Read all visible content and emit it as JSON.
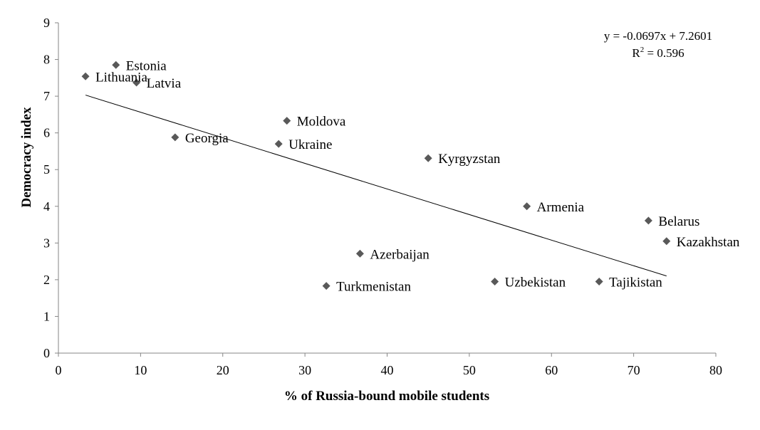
{
  "chart_data": {
    "type": "scatter",
    "xlabel": "% of Russia-bound mobile students",
    "ylabel": "Democracy index",
    "xlim": [
      0,
      80
    ],
    "ylim": [
      0,
      9
    ],
    "x_ticks": [
      0,
      10,
      20,
      30,
      40,
      50,
      60,
      70,
      80
    ],
    "y_ticks": [
      0,
      1,
      2,
      3,
      4,
      5,
      6,
      7,
      8,
      9
    ],
    "grid": false,
    "marker": "diamond",
    "marker_color": "#595959",
    "points": [
      {
        "label": "Lithuania",
        "x": 3.3,
        "y": 7.54
      },
      {
        "label": "Estonia",
        "x": 7.0,
        "y": 7.85
      },
      {
        "label": "Latvia",
        "x": 9.5,
        "y": 7.37
      },
      {
        "label": "Georgia",
        "x": 14.2,
        "y": 5.88
      },
      {
        "label": "Moldova",
        "x": 27.8,
        "y": 6.33
      },
      {
        "label": "Ukraine",
        "x": 26.8,
        "y": 5.7
      },
      {
        "label": "Kyrgyzstan",
        "x": 45.0,
        "y": 5.31
      },
      {
        "label": "Armenia",
        "x": 57.0,
        "y": 4.0
      },
      {
        "label": "Belarus",
        "x": 71.8,
        "y": 3.61
      },
      {
        "label": "Kazakhstan",
        "x": 74.0,
        "y": 3.05
      },
      {
        "label": "Azerbaijan",
        "x": 36.7,
        "y": 2.71
      },
      {
        "label": "Turkmenistan",
        "x": 32.6,
        "y": 1.83
      },
      {
        "label": "Uzbekistan",
        "x": 53.1,
        "y": 1.95
      },
      {
        "label": "Tajikistan",
        "x": 65.8,
        "y": 1.95
      }
    ],
    "trendline": {
      "type": "linear",
      "slope": -0.0697,
      "intercept": 7.2601,
      "x_range": [
        3.3,
        74.0
      ],
      "equation": "y = -0.0697x + 7.2601",
      "r2_prefix": "R",
      "r2_sup": "2",
      "r2_suffix": " = 0.596"
    }
  }
}
